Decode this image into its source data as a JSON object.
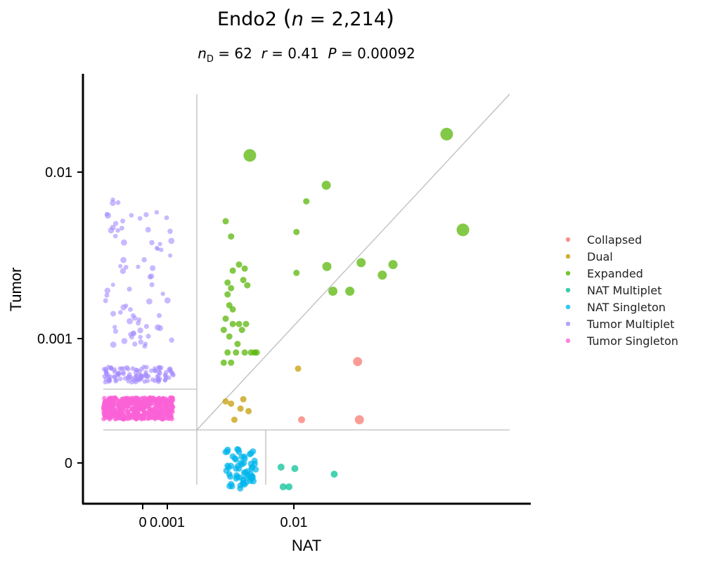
{
  "chart_data": {
    "type": "scatter",
    "title": {
      "cell_type": "Endo2",
      "n_symbol": "n",
      "eq": " = ",
      "n_value": "2,214",
      "open": "(",
      "close": ")"
    },
    "subtitle": {
      "nd_main": "n",
      "nd_sub": "D",
      "nd_value": " = 62",
      "r_symbol": "r",
      "r_value": " = 0.41",
      "p_symbol": "P",
      "p_value": " = 0.00092"
    },
    "xlabel": "NAT",
    "ylabel": "Tumor",
    "x_ticks": [
      {
        "value": 0,
        "label": "0"
      },
      {
        "value": 0.001,
        "label": "0.001"
      },
      {
        "value": 0.01,
        "label": "0.01"
      }
    ],
    "y_ticks": [
      {
        "value": 0,
        "label": "0"
      },
      {
        "value": 0.001,
        "label": "0.001"
      },
      {
        "value": 0.01,
        "label": "0.01"
      }
    ],
    "scale": "symlog",
    "grid": false,
    "legend_position": "right",
    "series": [
      {
        "name": "Collapsed",
        "color": "#f8766d"
      },
      {
        "name": "Dual",
        "color": "#c49a00"
      },
      {
        "name": "Expanded",
        "color": "#53b400"
      },
      {
        "name": "NAT Multiplet",
        "color": "#00c094"
      },
      {
        "name": "NAT Singleton",
        "color": "#00b6eb"
      },
      {
        "name": "Tumor Multiplet",
        "color": "#a58aff"
      },
      {
        "name": "Tumor Singleton",
        "color": "#fb61d7"
      }
    ],
    "points": {
      "Expanded": [
        {
          "x": 0.003,
          "y": 0.0063
        },
        {
          "x": 0.0033,
          "y": 0.0048
        },
        {
          "x": 0.0046,
          "y": 0.0205
        },
        {
          "x": 0.0038,
          "y": 0.0029
        },
        {
          "x": 0.0042,
          "y": 0.0027
        },
        {
          "x": 0.0034,
          "y": 0.0026
        },
        {
          "x": 0.0041,
          "y": 0.0022
        },
        {
          "x": 0.0031,
          "y": 0.0021
        },
        {
          "x": 0.0044,
          "y": 0.002
        },
        {
          "x": 0.0033,
          "y": 0.0019
        },
        {
          "x": 0.0031,
          "y": 0.0017
        },
        {
          "x": 0.0032,
          "y": 0.0014
        },
        {
          "x": 0.0034,
          "y": 0.0013
        },
        {
          "x": 0.003,
          "y": 0.0011
        },
        {
          "x": 0.0034,
          "y": 0.001
        },
        {
          "x": 0.0038,
          "y": 0.001
        },
        {
          "x": 0.0043,
          "y": 0.001
        },
        {
          "x": 0.0029,
          "y": 0.0009
        },
        {
          "x": 0.004,
          "y": 0.0009
        },
        {
          "x": 0.0032,
          "y": 0.0008
        },
        {
          "x": 0.0037,
          "y": 0.0007
        },
        {
          "x": 0.0031,
          "y": 0.0006
        },
        {
          "x": 0.0036,
          "y": 0.0006
        },
        {
          "x": 0.0042,
          "y": 0.0006
        },
        {
          "x": 0.0047,
          "y": 0.0006
        },
        {
          "x": 0.005,
          "y": 0.0006
        },
        {
          "x": 0.0052,
          "y": 0.0006
        },
        {
          "x": 0.0029,
          "y": 0.0005
        },
        {
          "x": 0.0033,
          "y": 0.0005
        },
        {
          "x": 0.0105,
          "y": 0.0052
        },
        {
          "x": 0.0125,
          "y": 0.009
        },
        {
          "x": 0.0105,
          "y": 0.0025
        },
        {
          "x": 0.0178,
          "y": 0.012
        },
        {
          "x": 0.018,
          "y": 0.0028
        },
        {
          "x": 0.02,
          "y": 0.0018
        },
        {
          "x": 0.027,
          "y": 0.0018
        },
        {
          "x": 0.033,
          "y": 0.003
        },
        {
          "x": 0.048,
          "y": 0.0024
        },
        {
          "x": 0.058,
          "y": 0.0029
        },
        {
          "x": 0.15,
          "y": 0.03
        },
        {
          "x": 0.2,
          "y": 0.0054
        }
      ],
      "Dual": [
        {
          "x": 0.003,
          "y": 0.00025
        },
        {
          "x": 0.0033,
          "y": 0.00024
        },
        {
          "x": 0.0041,
          "y": 0.00026
        },
        {
          "x": 0.0039,
          "y": 0.00022
        },
        {
          "x": 0.0045,
          "y": 0.00021
        },
        {
          "x": 0.0035,
          "y": 0.00018
        },
        {
          "x": 0.0108,
          "y": 0.00045
        }
      ],
      "Collapsed": [
        {
          "x": 0.0115,
          "y": 0.00018
        },
        {
          "x": 0.031,
          "y": 0.00051
        },
        {
          "x": 0.032,
          "y": 0.00018
        }
      ],
      "NAT Multiplet": [
        {
          "x": 0.008,
          "y": -3e-05
        },
        {
          "x": 0.0102,
          "y": -4e-05
        },
        {
          "x": 0.0205,
          "y": -8e-05
        },
        {
          "x": 0.0083,
          "y": -0.00017
        },
        {
          "x": 0.0092,
          "y": -0.00017
        }
      ],
      "NAT Singleton": [
        {
          "x": 0.003,
          "y": 5e-05
        },
        {
          "x": 0.0034,
          "y": 3e-05
        },
        {
          "x": 0.0038,
          "y": 5e-05
        },
        {
          "x": 0.0042,
          "y": 2e-05
        },
        {
          "x": 0.0046,
          "y": 4e-05
        },
        {
          "x": 0.005,
          "y": 1e-05
        },
        {
          "x": 0.0031,
          "y": -2e-05
        },
        {
          "x": 0.0036,
          "y": -4e-05
        },
        {
          "x": 0.004,
          "y": -1e-05
        },
        {
          "x": 0.0044,
          "y": -6e-05
        },
        {
          "x": 0.0048,
          "y": -3e-05
        },
        {
          "x": 0.0032,
          "y": -8e-05
        },
        {
          "x": 0.0037,
          "y": -0.0001
        },
        {
          "x": 0.0041,
          "y": -0.00012
        },
        {
          "x": 0.0045,
          "y": -9e-05
        },
        {
          "x": 0.0049,
          "y": -0.00013
        },
        {
          "x": 0.0033,
          "y": -0.00015
        },
        {
          "x": 0.0039,
          "y": -0.00016
        },
        {
          "x": 0.0043,
          "y": -0.00014
        },
        {
          "x": 0.0047,
          "y": -0.00011
        }
      ],
      "Tumor Multiplet": [
        {
          "x": 0.0004,
          "y": 0.009
        },
        {
          "x": 0.0007,
          "y": 0.0075
        },
        {
          "x": 0.0011,
          "y": 0.0064
        },
        {
          "x": 0.0004,
          "y": 0.0065
        },
        {
          "x": 0.0009,
          "y": 0.0055
        },
        {
          "x": 0.0006,
          "y": 0.005
        },
        {
          "x": 0.0012,
          "y": 0.0046
        },
        {
          "x": 0.0005,
          "y": 0.004
        },
        {
          "x": 0.0008,
          "y": 0.0036
        },
        {
          "x": 0.001,
          "y": 0.003
        },
        {
          "x": 0.0006,
          "y": 0.0027
        },
        {
          "x": 0.0011,
          "y": 0.0024
        },
        {
          "x": 0.0004,
          "y": 0.002
        },
        {
          "x": 0.0009,
          "y": 0.0018
        },
        {
          "x": 0.0007,
          "y": 0.0015
        },
        {
          "x": 0.0005,
          "y": 0.0013
        },
        {
          "x": 0.0012,
          "y": 0.0012
        },
        {
          "x": 0.0008,
          "y": 0.0011
        },
        {
          "x": 0.0006,
          "y": 0.001
        },
        {
          "x": 0.001,
          "y": 0.0009
        },
        {
          "x": 0.0004,
          "y": 0.0009
        },
        {
          "x": 0.0009,
          "y": 0.0008
        },
        {
          "x": 0.0007,
          "y": 0.0008
        },
        {
          "x": 0.0011,
          "y": 0.0007
        },
        {
          "x": 0.0005,
          "y": 0.0007
        }
      ],
      "Tumor Singleton": [
        {
          "x": 0.0004,
          "y": 0.00022
        },
        {
          "x": 0.0006,
          "y": 0.0002
        },
        {
          "x": 0.0008,
          "y": 0.00023
        },
        {
          "x": 0.001,
          "y": 0.00019
        },
        {
          "x": 0.0012,
          "y": 0.00021
        },
        {
          "x": 0.0005,
          "y": 0.00018
        }
      ]
    }
  }
}
